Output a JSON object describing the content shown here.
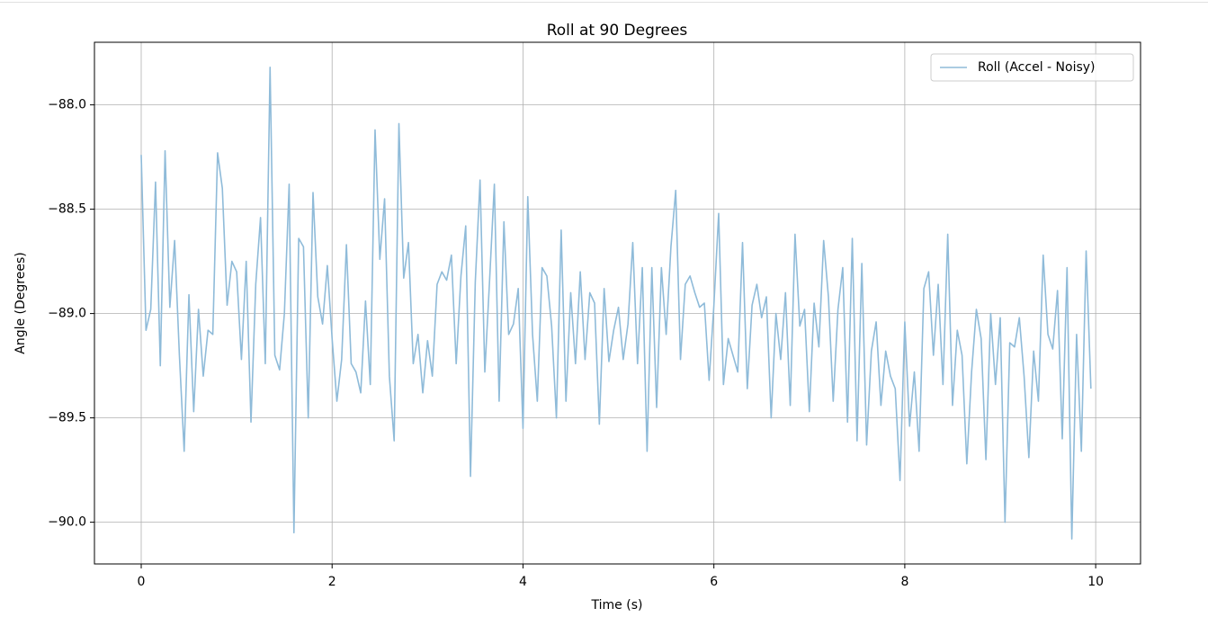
{
  "chart_data": {
    "type": "line",
    "title": "Roll at 90 Degrees",
    "xlabel": "Time (s)",
    "ylabel": "Angle (Degrees)",
    "x": [
      0,
      0.05,
      0.1,
      0.15,
      0.2,
      0.25,
      0.3,
      0.35,
      0.4,
      0.45,
      0.5,
      0.55,
      0.6,
      0.65,
      0.7,
      0.75,
      0.8,
      0.85,
      0.9,
      0.95,
      1,
      1.05,
      1.1,
      1.15,
      1.2,
      1.25,
      1.3,
      1.35,
      1.4,
      1.45,
      1.5,
      1.55,
      1.6,
      1.65,
      1.7,
      1.75,
      1.8,
      1.85,
      1.9,
      1.95,
      2,
      2.05,
      2.1,
      2.15,
      2.2,
      2.25,
      2.3,
      2.35,
      2.4,
      2.45,
      2.5,
      2.55,
      2.6,
      2.65,
      2.7,
      2.75,
      2.8,
      2.85,
      2.9,
      2.95,
      3,
      3.05,
      3.1,
      3.15,
      3.2,
      3.25,
      3.3,
      3.35,
      3.4,
      3.45,
      3.5,
      3.55,
      3.6,
      3.65,
      3.7,
      3.75,
      3.8,
      3.85,
      3.9,
      3.95,
      4,
      4.05,
      4.1,
      4.15,
      4.2,
      4.25,
      4.3,
      4.35,
      4.4,
      4.45,
      4.5,
      4.55,
      4.6,
      4.65,
      4.7,
      4.75,
      4.8,
      4.85,
      4.9,
      4.95,
      5,
      5.05,
      5.1,
      5.15,
      5.2,
      5.25,
      5.3,
      5.35,
      5.4,
      5.45,
      5.5,
      5.55,
      5.6,
      5.65,
      5.7,
      5.75,
      5.8,
      5.85,
      5.9,
      5.95,
      6,
      6.05,
      6.1,
      6.15,
      6.2,
      6.25,
      6.3,
      6.35,
      6.4,
      6.45,
      6.5,
      6.55,
      6.6,
      6.65,
      6.7,
      6.75,
      6.8,
      6.85,
      6.9,
      6.95,
      7,
      7.05,
      7.1,
      7.15,
      7.2,
      7.25,
      7.3,
      7.35,
      7.4,
      7.45,
      7.5,
      7.55,
      7.6,
      7.65,
      7.7,
      7.75,
      7.8,
      7.85,
      7.9,
      7.95,
      8,
      8.05,
      8.1,
      8.15,
      8.2,
      8.25,
      8.3,
      8.35,
      8.4,
      8.45,
      8.5,
      8.55,
      8.6,
      8.65,
      8.7,
      8.75,
      8.8,
      8.85,
      8.9,
      8.95,
      9,
      9.05,
      9.1,
      9.15,
      9.2,
      9.25,
      9.3,
      9.35,
      9.4,
      9.45,
      9.5,
      9.55,
      9.6,
      9.65,
      9.7,
      9.75,
      9.8,
      9.85,
      9.9,
      9.95
    ],
    "series": [
      {
        "name": "Roll (Accel - Noisy)",
        "color": "#8fbbd9",
        "values": [
          -88.24,
          -89.08,
          -88.98,
          -88.37,
          -89.25,
          -88.22,
          -88.97,
          -88.65,
          -89.2,
          -89.66,
          -88.91,
          -89.47,
          -88.98,
          -89.3,
          -89.08,
          -89.1,
          -88.23,
          -88.4,
          -88.96,
          -88.75,
          -88.8,
          -89.22,
          -88.75,
          -89.52,
          -88.86,
          -88.54,
          -89.24,
          -87.82,
          -89.2,
          -89.27,
          -89.0,
          -88.38,
          -90.05,
          -88.64,
          -88.68,
          -89.5,
          -88.42,
          -88.92,
          -89.05,
          -88.77,
          -89.12,
          -89.42,
          -89.22,
          -88.67,
          -89.24,
          -89.28,
          -89.38,
          -88.94,
          -89.34,
          -88.12,
          -88.74,
          -88.45,
          -89.3,
          -89.61,
          -88.09,
          -88.83,
          -88.66,
          -89.24,
          -89.1,
          -89.38,
          -89.13,
          -89.3,
          -88.86,
          -88.8,
          -88.84,
          -88.72,
          -89.24,
          -88.82,
          -88.58,
          -89.78,
          -88.85,
          -88.36,
          -89.28,
          -88.84,
          -88.38,
          -89.42,
          -88.56,
          -89.1,
          -89.05,
          -88.88,
          -89.55,
          -88.44,
          -89.1,
          -89.42,
          -88.78,
          -88.82,
          -89.06,
          -89.5,
          -88.6,
          -89.42,
          -88.9,
          -89.24,
          -88.8,
          -89.22,
          -88.9,
          -88.95,
          -89.53,
          -88.88,
          -89.23,
          -89.08,
          -88.97,
          -89.22,
          -89.05,
          -88.66,
          -89.24,
          -88.78,
          -89.66,
          -88.78,
          -89.45,
          -88.78,
          -89.1,
          -88.68,
          -88.41,
          -89.22,
          -88.86,
          -88.82,
          -88.9,
          -88.97,
          -88.95,
          -89.32,
          -88.96,
          -88.52,
          -89.34,
          -89.12,
          -89.2,
          -89.28,
          -88.66,
          -89.36,
          -88.96,
          -88.86,
          -89.02,
          -88.92,
          -89.5,
          -89.0,
          -89.22,
          -88.9,
          -89.44,
          -88.62,
          -89.06,
          -88.98,
          -89.47,
          -88.95,
          -89.16,
          -88.65,
          -88.92,
          -89.42,
          -88.98,
          -88.78,
          -89.52,
          -88.64,
          -89.61,
          -88.76,
          -89.63,
          -89.18,
          -89.04,
          -89.44,
          -89.18,
          -89.3,
          -89.36,
          -89.8,
          -89.04,
          -89.54,
          -89.28,
          -89.66,
          -88.88,
          -88.8,
          -89.2,
          -88.86,
          -89.34,
          -88.62,
          -89.44,
          -89.08,
          -89.2,
          -89.72,
          -89.28,
          -88.98,
          -89.12,
          -89.7,
          -89.0,
          -89.34,
          -89.02,
          -90.0,
          -89.14,
          -89.16,
          -89.02,
          -89.3,
          -89.69,
          -89.18,
          -89.42,
          -88.72,
          -89.1,
          -89.17,
          -88.89,
          -89.6,
          -88.78,
          -90.08,
          -89.1,
          -89.66,
          -88.7,
          -89.36
        ]
      }
    ],
    "xlim": [
      -0.49,
      10.47
    ],
    "ylim": [
      -90.2,
      -87.7
    ],
    "xticks": [
      0,
      2,
      4,
      6,
      8,
      10
    ],
    "yticks": [
      {
        "value": -90,
        "label": "−90.0"
      },
      {
        "value": -89.5,
        "label": "−89.5"
      },
      {
        "value": -89,
        "label": "−89.0"
      },
      {
        "value": -88.5,
        "label": "−88.5"
      },
      {
        "value": -88,
        "label": "−88.0"
      }
    ],
    "grid": true,
    "legend": "upper right"
  }
}
